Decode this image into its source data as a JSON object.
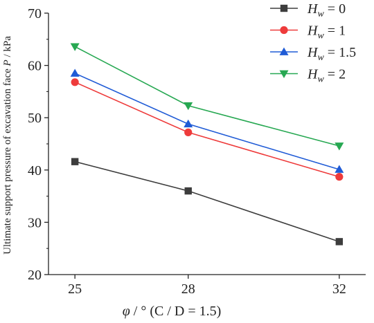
{
  "chart_data": {
    "type": "line",
    "xlabel": "φ / °",
    "xlabel_note": "(C / D = 1.5)",
    "ylabel": "Ultimate support pressure of excavation face",
    "ylabel_var": "P",
    "ylabel_unit": " / kPa",
    "x": [
      25,
      28,
      32
    ],
    "xticks": [
      "25",
      "28",
      "32"
    ],
    "xlim": [
      24.3,
      32.7
    ],
    "ylim": [
      20,
      70
    ],
    "yticks": [
      "20",
      "30",
      "40",
      "50",
      "60",
      "70"
    ],
    "grid": false,
    "legend_position": "top-right",
    "series": [
      {
        "name": "H_w = 0",
        "name_var": "H",
        "name_sub": "w",
        "name_val": " = 0",
        "marker": "square",
        "color": "#3d3d3d",
        "values": [
          41.6,
          36.0,
          26.3
        ]
      },
      {
        "name": "H_w = 1",
        "name_var": "H",
        "name_sub": "w",
        "name_val": " = 1",
        "marker": "circle",
        "color": "#ee3b3b",
        "values": [
          56.8,
          47.2,
          38.7
        ]
      },
      {
        "name": "H_w = 1.5",
        "name_var": "H",
        "name_sub": "w",
        "name_val": " = 1.5",
        "marker": "triangle-up",
        "color": "#1f5bd6",
        "values": [
          58.5,
          48.8,
          40.1
        ]
      },
      {
        "name": "H_w = 2",
        "name_var": "H",
        "name_sub": "w",
        "name_val": " = 2",
        "marker": "triangle-down",
        "color": "#27a852",
        "values": [
          63.6,
          52.3,
          44.6
        ]
      }
    ]
  }
}
